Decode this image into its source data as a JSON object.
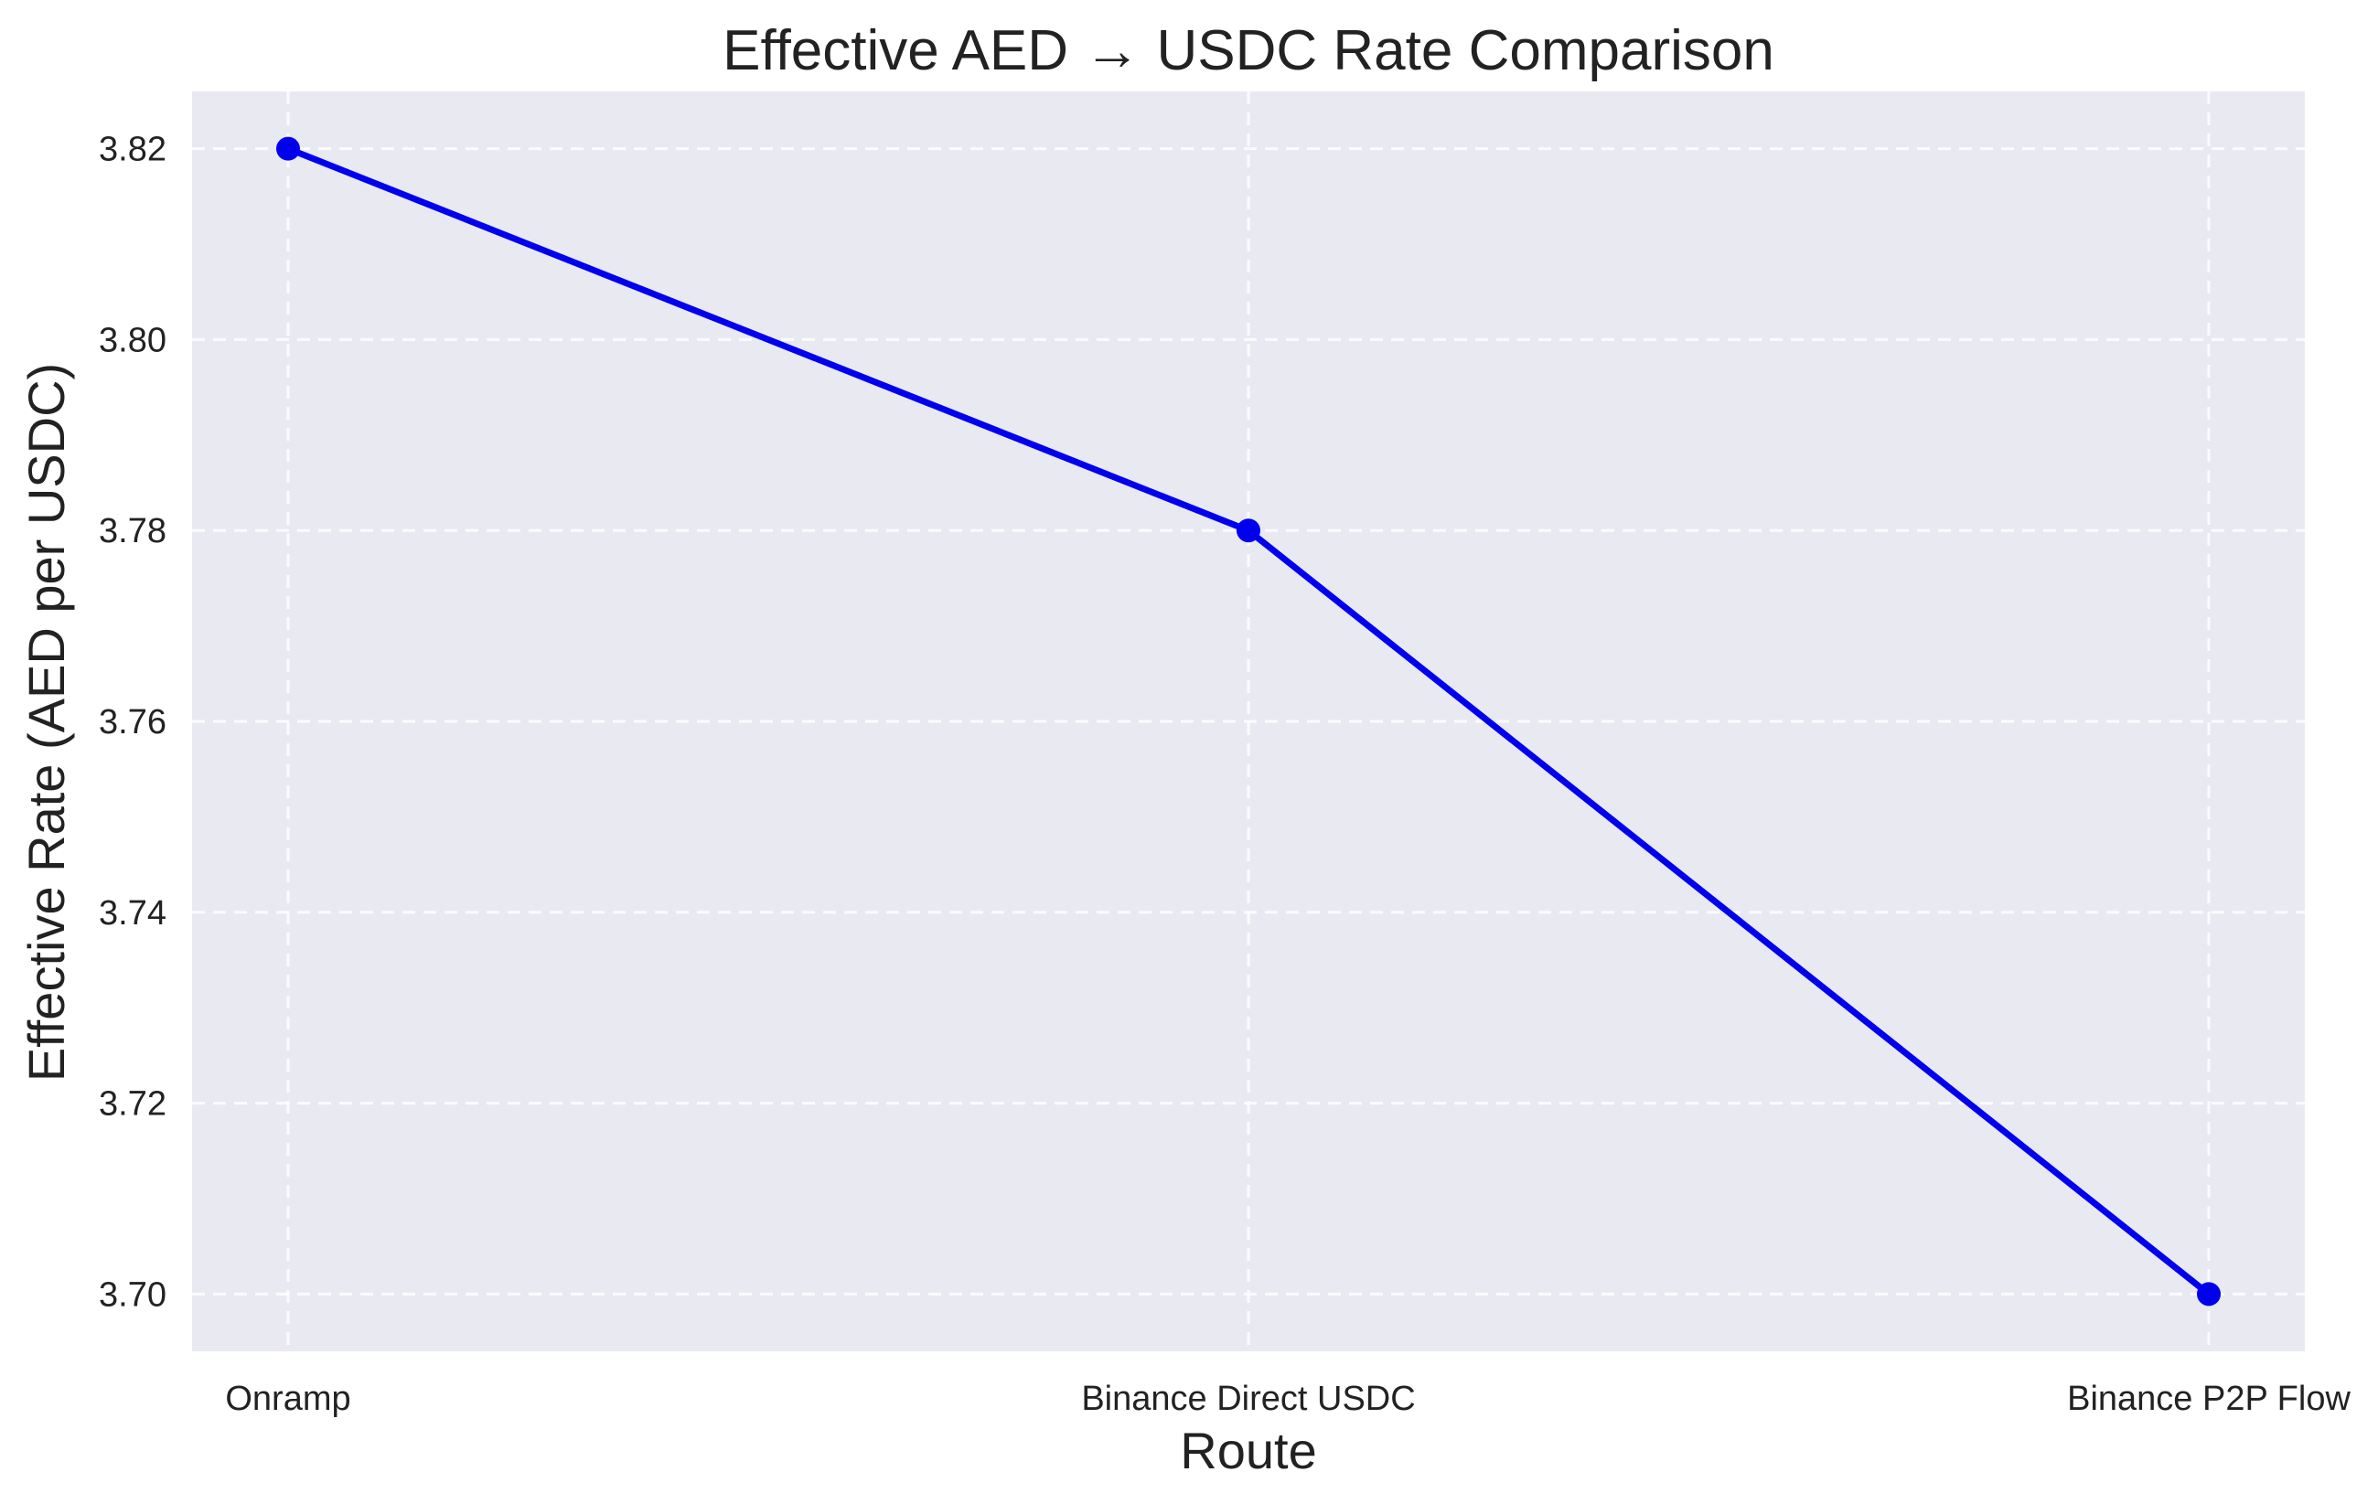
{
  "chart_data": {
    "type": "line",
    "title": "Effective AED → USDC Rate Comparison",
    "xlabel": "Route",
    "ylabel": "Effective Rate (AED per USDC)",
    "categories": [
      "Onramp",
      "Binance Direct USDC",
      "Binance P2P Flow"
    ],
    "series": [
      {
        "values": [
          3.82,
          3.78,
          3.7
        ],
        "color": "#0000ee",
        "marker": "circle"
      }
    ],
    "yticks": [
      "3.70",
      "3.72",
      "3.74",
      "3.76",
      "3.78",
      "3.80",
      "3.82"
    ],
    "ylim": [
      3.694,
      3.826
    ],
    "grid": true,
    "background_color": "#e9e9f2"
  }
}
